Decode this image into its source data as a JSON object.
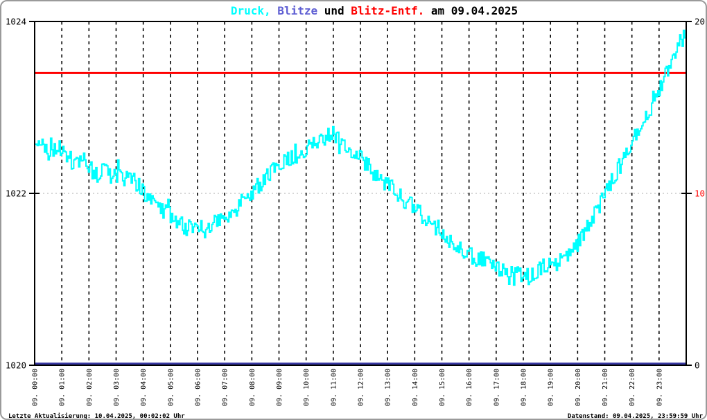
{
  "title": {
    "parts": [
      {
        "text": "Druck,",
        "color": "#00ffff"
      },
      {
        "text": " Blitze",
        "color": "#5f5fd3"
      },
      {
        "text": " und ",
        "color": "#000000"
      },
      {
        "text": "Blitz-Entf.",
        "color": "#ff0000"
      },
      {
        "text": " am 09.04.2025",
        "color": "#000000"
      }
    ]
  },
  "footer": {
    "left": "Letzte Aktualisierung: 10.04.2025, 00:02:02 Uhr",
    "right": "Datenstand: 09.04.2025, 23:59:59 Uhr"
  },
  "chart_data": {
    "type": "line",
    "title": "Druck, Blitze und Blitz-Entf. am 09.04.2025",
    "grid": {
      "vertical_dashed_at_each_hour": true,
      "horizontal_dotted_at_left_value": 1022
    },
    "left_axis": {
      "range": [
        1020,
        1024
      ],
      "ticks": [
        1020,
        1022,
        1024
      ],
      "tick_color": "#000000"
    },
    "right_axis": {
      "range": [
        0,
        20
      ],
      "ticks": [
        0,
        10,
        20
      ],
      "tick_colors": {
        "0": "#000000",
        "10": "#ff0000",
        "20": "#000000"
      }
    },
    "x_axis": {
      "range_hours": [
        0,
        24
      ],
      "tick_labels": [
        "09. 00:00",
        "09. 01:00",
        "09. 02:00",
        "09. 03:00",
        "09. 04:00",
        "09. 05:00",
        "09. 06:00",
        "09. 07:00",
        "09. 08:00",
        "09. 09:00",
        "09. 10:00",
        "09. 11:00",
        "09. 12:00",
        "09. 13:00",
        "09. 14:00",
        "09. 15:00",
        "09. 16:00",
        "09. 17:00",
        "09. 18:00",
        "09. 19:00",
        "09. 20:00",
        "09. 21:00",
        "09. 22:00",
        "09. 23:00"
      ]
    },
    "series": [
      {
        "name": "Druck",
        "color": "#00ffff",
        "axis": "left",
        "jitter_hpa": 0.1,
        "x_hours": [
          0,
          0.25,
          0.5,
          0.75,
          1,
          1.25,
          1.5,
          1.75,
          2,
          2.25,
          2.5,
          2.75,
          3,
          3.25,
          3.5,
          3.75,
          4,
          4.25,
          4.5,
          4.75,
          5,
          5.25,
          5.5,
          5.75,
          6,
          6.25,
          6.5,
          6.75,
          7,
          7.25,
          7.5,
          7.75,
          8,
          8.25,
          8.5,
          8.75,
          9,
          9.25,
          9.5,
          9.75,
          10,
          10.25,
          10.5,
          10.75,
          11,
          11.25,
          11.5,
          11.75,
          12,
          12.25,
          12.5,
          12.75,
          13,
          13.25,
          13.5,
          13.75,
          14,
          14.25,
          14.5,
          14.75,
          15,
          15.25,
          15.5,
          15.75,
          16,
          16.25,
          16.5,
          16.75,
          17,
          17.25,
          17.5,
          17.75,
          18,
          18.25,
          18.5,
          18.75,
          19,
          19.25,
          19.5,
          19.75,
          20,
          20.25,
          20.5,
          20.75,
          21,
          21.25,
          21.5,
          21.75,
          22,
          22.25,
          22.5,
          22.75,
          23,
          23.25,
          23.5,
          23.75,
          24
        ],
        "values": [
          1022.5,
          1022.55,
          1022.45,
          1022.55,
          1022.5,
          1022.4,
          1022.35,
          1022.42,
          1022.3,
          1022.22,
          1022.28,
          1022.2,
          1022.22,
          1022.15,
          1022.2,
          1022.12,
          1022.0,
          1021.92,
          1021.85,
          1021.8,
          1021.75,
          1021.68,
          1021.62,
          1021.58,
          1021.62,
          1021.57,
          1021.62,
          1021.68,
          1021.72,
          1021.78,
          1021.85,
          1021.95,
          1022.02,
          1022.1,
          1022.18,
          1022.25,
          1022.3,
          1022.38,
          1022.42,
          1022.48,
          1022.52,
          1022.58,
          1022.6,
          1022.65,
          1022.72,
          1022.6,
          1022.52,
          1022.48,
          1022.42,
          1022.32,
          1022.22,
          1022.18,
          1022.1,
          1022.02,
          1021.95,
          1021.9,
          1021.85,
          1021.75,
          1021.68,
          1021.62,
          1021.55,
          1021.45,
          1021.4,
          1021.35,
          1021.3,
          1021.25,
          1021.22,
          1021.2,
          1021.15,
          1021.1,
          1021.05,
          1021.1,
          1021.05,
          1021.02,
          1021.1,
          1021.15,
          1021.15,
          1021.2,
          1021.25,
          1021.32,
          1021.42,
          1021.55,
          1021.7,
          1021.85,
          1022.0,
          1022.15,
          1022.3,
          1022.45,
          1022.6,
          1022.72,
          1022.88,
          1023.05,
          1023.2,
          1023.42,
          1023.6,
          1023.75,
          1023.85
        ]
      },
      {
        "name": "Blitz-Entf.",
        "color": "#ff0000",
        "axis": "right",
        "constant_value": 17
      },
      {
        "name": "Blitze",
        "color": "#3737a2",
        "axis": "right",
        "constant_value": 0
      }
    ]
  },
  "colors": {
    "background": "#ffffff",
    "frame_border": "#9a9a9a",
    "axis": "#000000",
    "grid_dashed": "#000000",
    "grid_dotted": "#c8c8c8"
  }
}
